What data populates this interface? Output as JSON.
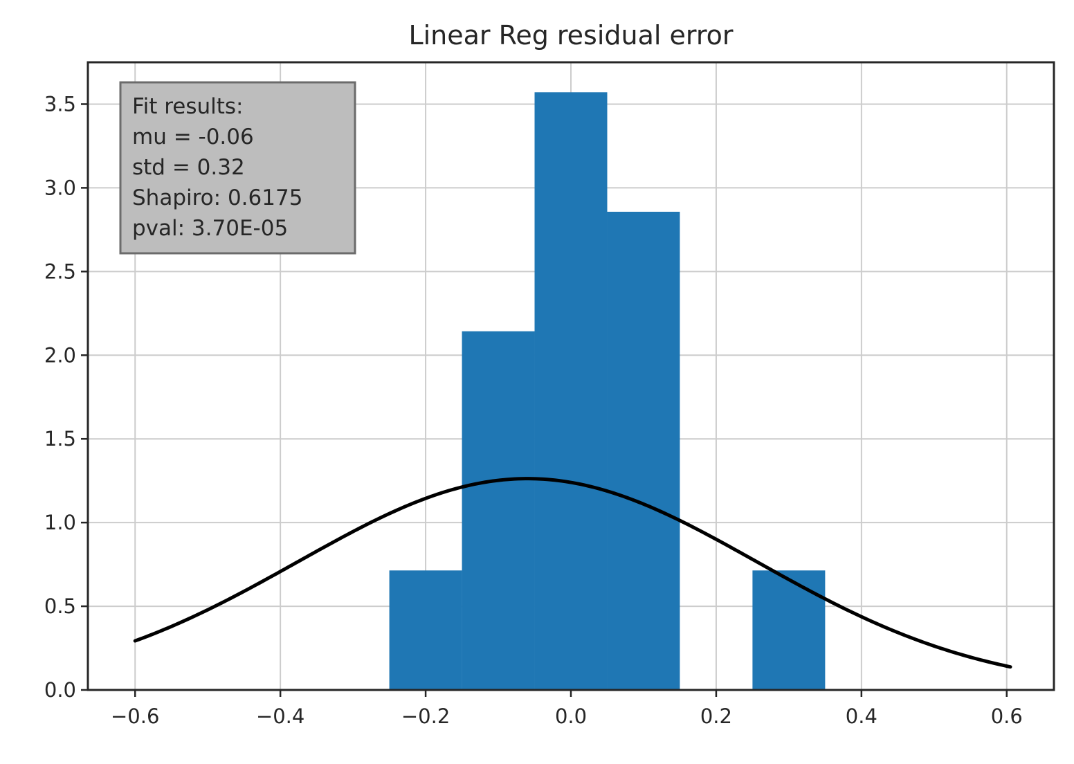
{
  "chart_data": {
    "type": "bar",
    "title": "Linear Reg residual error",
    "xlabel": "",
    "ylabel": "",
    "xlim": [
      -0.665,
      0.665
    ],
    "ylim": [
      0.0,
      3.75
    ],
    "x_ticks": [
      -0.6,
      -0.4,
      -0.2,
      0.0,
      0.2,
      0.4,
      0.6
    ],
    "x_tick_labels": [
      "−0.6",
      "−0.4",
      "−0.2",
      "0.0",
      "0.2",
      "0.4",
      "0.6"
    ],
    "y_ticks": [
      0.0,
      0.5,
      1.0,
      1.5,
      2.0,
      2.5,
      3.0,
      3.5
    ],
    "y_tick_labels": [
      "0.0",
      "0.5",
      "1.0",
      "1.5",
      "2.0",
      "2.5",
      "3.0",
      "3.5"
    ],
    "grid": true,
    "histogram": {
      "bin_edges": [
        -0.25,
        -0.15,
        -0.05,
        0.05,
        0.15,
        0.25,
        0.35
      ],
      "values": [
        0.714,
        2.143,
        3.571,
        2.857,
        0.0,
        0.714
      ],
      "color": "#1f77b4"
    },
    "fit_curve": {
      "type": "normal_pdf",
      "mu": -0.06,
      "std": 0.316,
      "x_range": [
        -0.6,
        0.605
      ],
      "color": "#000000"
    },
    "annotation": {
      "lines": [
        "Fit results:",
        "mu = -0.06",
        "std = 0.32",
        "Shapiro: 0.6175",
        "pval: 3.70E-05"
      ],
      "box_color": "#bdbdbd",
      "placement": "top-left"
    }
  }
}
